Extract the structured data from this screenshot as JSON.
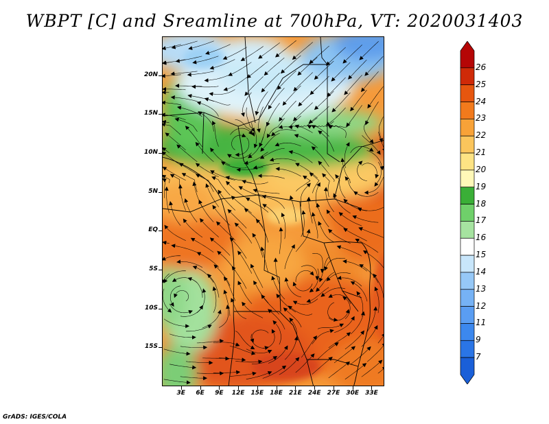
{
  "title": "WBPT [C] and Sreamline at 700hPa, VT: 2020031403",
  "credit": "GrADS: IGES/COLA",
  "lat_labels": [
    "20N",
    "15N",
    "10N",
    "5N",
    "EQ",
    "5S",
    "10S",
    "15S"
  ],
  "lat_values": [
    20,
    15,
    10,
    5,
    0,
    -5,
    -10,
    -15
  ],
  "lon_labels": [
    "3E",
    "6E",
    "9E",
    "12E",
    "15E",
    "18E",
    "21E",
    "24E",
    "27E",
    "30E",
    "33E"
  ],
  "lon_values": [
    3,
    6,
    9,
    12,
    15,
    18,
    21,
    24,
    27,
    30,
    33
  ],
  "map_extent": {
    "lon_min": 0,
    "lon_max": 35,
    "lat_min": -20,
    "lat_max": 25
  },
  "colorbar": {
    "labels": [
      "7",
      "9",
      "11",
      "12",
      "13",
      "14",
      "15",
      "16",
      "17",
      "18",
      "19",
      "20",
      "21",
      "22",
      "23",
      "24",
      "25",
      "26"
    ],
    "colors": [
      "#1a5fd8",
      "#2a75e6",
      "#3c88ee",
      "#5a9df2",
      "#76b2f5",
      "#96c8f7",
      "#c8e6fb",
      "#ffffff",
      "#a6e3a0",
      "#6fd06a",
      "#3aaf37",
      "#fff8b8",
      "#fde384",
      "#fbc55c",
      "#f8a238",
      "#f27a1c",
      "#e6560f",
      "#cf2a08",
      "#b50606"
    ]
  },
  "chart_data": {
    "type": "heatmap",
    "title": "WBPT [C] and Sreamline at 700hPa, VT: 2020031403",
    "variable": "WBPT [C]",
    "level": "700hPa",
    "valid_time": "2020031403",
    "x_axis": {
      "labels": [
        "3E",
        "6E",
        "9E",
        "12E",
        "15E",
        "18E",
        "21E",
        "24E",
        "27E",
        "30E",
        "33E"
      ],
      "range": [
        0,
        35
      ]
    },
    "y_axis": {
      "labels": [
        "20N",
        "15N",
        "10N",
        "5N",
        "EQ",
        "5S",
        "10S",
        "15S"
      ],
      "range": [
        -20,
        25
      ]
    },
    "color_scale": {
      "min": 7,
      "max": 26
    }
  }
}
